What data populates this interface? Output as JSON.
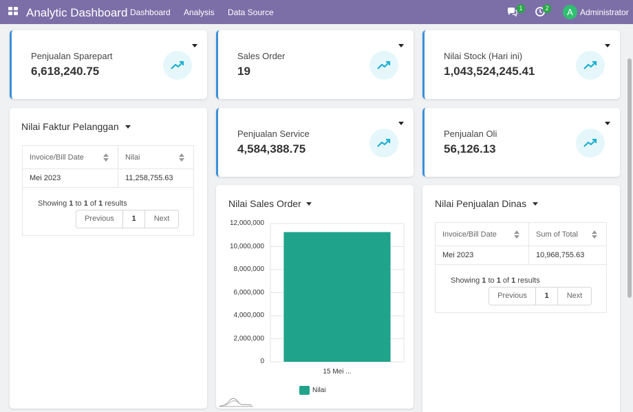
{
  "navbar": {
    "title": "Analytic Dashboard",
    "links": [
      "Dashboard",
      "Analysis",
      "Data Source"
    ],
    "messages_badge": "1",
    "activity_badge": "2",
    "avatar_initial": "A",
    "user_name": "Administrator"
  },
  "kpis": [
    {
      "label": "Penjualan Sparepart",
      "value": "6,618,240.75"
    },
    {
      "label": "Sales Order",
      "value": "19"
    },
    {
      "label": "Nilai Stock (Hari ini)",
      "value": "1,043,524,245.41"
    },
    {
      "label": "Penjualan Service",
      "value": "4,584,388.75"
    },
    {
      "label": "Penjualan Oli",
      "value": "56,126.13"
    }
  ],
  "faktur": {
    "title": "Nilai Faktur Pelanggan",
    "columns": [
      "Invoice/Bill Date",
      "Nilai"
    ],
    "rows": [
      [
        "Mei 2023",
        "11,258,755.63"
      ]
    ],
    "showing_prefix": "Showing",
    "showing_from": "1",
    "showing_to_word": "to",
    "showing_to": "1",
    "showing_of_word": "of",
    "showing_total": "1",
    "showing_suffix": "results",
    "prev": "Previous",
    "page": "1",
    "next": "Next"
  },
  "dinas": {
    "title": "Nilai Penjualan Dinas",
    "columns": [
      "Invoice/Bill Date",
      "Sum of Total"
    ],
    "rows": [
      [
        "Mei 2023",
        "10,968,755.63"
      ]
    ],
    "showing_prefix": "Showing",
    "showing_from": "1",
    "showing_to_word": "to",
    "showing_to": "1",
    "showing_of_word": "of",
    "showing_total": "1",
    "showing_suffix": "results",
    "prev": "Previous",
    "page": "1",
    "next": "Next"
  },
  "sales_chart_title": "Nilai Sales Order",
  "chart_data": {
    "type": "bar",
    "categories": [
      "15 Mei ..."
    ],
    "series": [
      {
        "name": "Nilai",
        "values": [
          11258755.63
        ]
      }
    ],
    "yticks": [
      "12,000,000",
      "10,000,000",
      "8,000,000",
      "6,000,000",
      "4,000,000",
      "2,000,000",
      "0"
    ],
    "ylim": [
      0,
      12000000
    ],
    "grid": true,
    "legend_position": "bottom",
    "bar_color": "#1fa38b"
  },
  "colors": {
    "navbar": "#7c6fa8",
    "accent_border": "#3b8fd9",
    "icon_circle": "#e5f7fb",
    "icon_stroke": "#1fb0d0",
    "badge": "#28a745",
    "bar": "#1fa38b"
  }
}
